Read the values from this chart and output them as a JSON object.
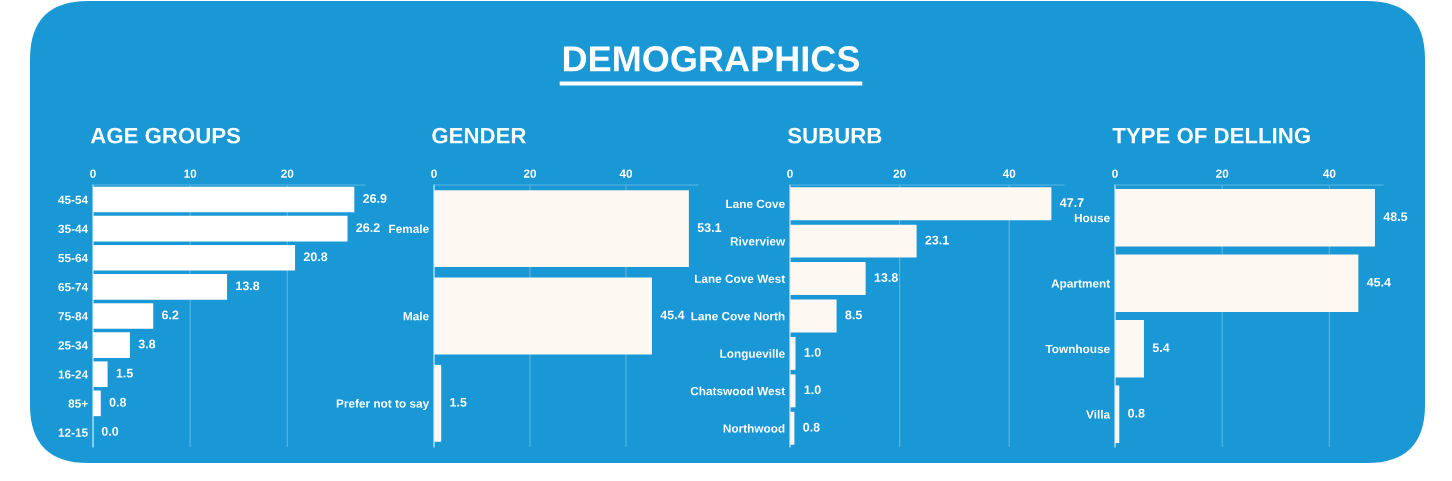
{
  "chart_data": [
    {
      "type": "other",
      "title": "DEMOGRAPHICS"
    },
    {
      "type": "bar",
      "orientation": "horizontal",
      "title": "AGE GROUPS",
      "categories": [
        "45-54",
        "35-44",
        "55-64",
        "65-74",
        "75-84",
        "25-34",
        "16-24",
        "85+",
        "12-15"
      ],
      "values": [
        26.9,
        26.2,
        20.8,
        13.8,
        6.2,
        3.8,
        1.5,
        0.8,
        0.0
      ],
      "value_labels": [
        "26.9",
        "26.2",
        "20.8",
        "13.8",
        "6.2",
        "3.8",
        "1.5",
        "0.8",
        "0.0"
      ],
      "color": "#ffffff",
      "xlim": [
        0,
        28
      ],
      "xticks": [
        0,
        10,
        20
      ],
      "grid": "x"
    },
    {
      "type": "bar",
      "orientation": "horizontal",
      "title": "GENDER",
      "categories": [
        "Female",
        "Male",
        "Prefer not to say"
      ],
      "values": [
        53.1,
        45.4,
        1.5
      ],
      "value_labels": [
        "53.1",
        "45.4",
        "1.5"
      ],
      "color": "#fdf8f2",
      "xlim": [
        0,
        55
      ],
      "xticks": [
        0,
        20,
        40
      ],
      "grid": "x"
    },
    {
      "type": "bar",
      "orientation": "horizontal",
      "title": "SUBURB",
      "categories": [
        "Lane Cove",
        "Riverview",
        "Lane Cove West",
        "Lane Cove North",
        "Longueville",
        "Chatswood West",
        "Northwood"
      ],
      "values": [
        47.7,
        23.1,
        13.8,
        8.5,
        1.0,
        1.0,
        0.8
      ],
      "value_labels": [
        "47.7",
        "23.1",
        "13.8",
        "8.5",
        "1.0",
        "1.0",
        "0.8"
      ],
      "color": "#fdf8f2",
      "xlim": [
        0,
        50
      ],
      "xticks": [
        0,
        20,
        40
      ],
      "grid": "x"
    },
    {
      "type": "bar",
      "orientation": "horizontal",
      "title": "TYPE OF DELLING",
      "categories": [
        "House",
        "Apartment",
        "Townhouse",
        "Villa"
      ],
      "values": [
        48.5,
        45.4,
        5.4,
        0.8
      ],
      "value_labels": [
        "48.5",
        "45.4",
        "5.4",
        "0.8"
      ],
      "color": "#fdf8f2",
      "xlim": [
        0,
        50
      ],
      "xticks": [
        0,
        20,
        40
      ],
      "grid": "x"
    }
  ]
}
